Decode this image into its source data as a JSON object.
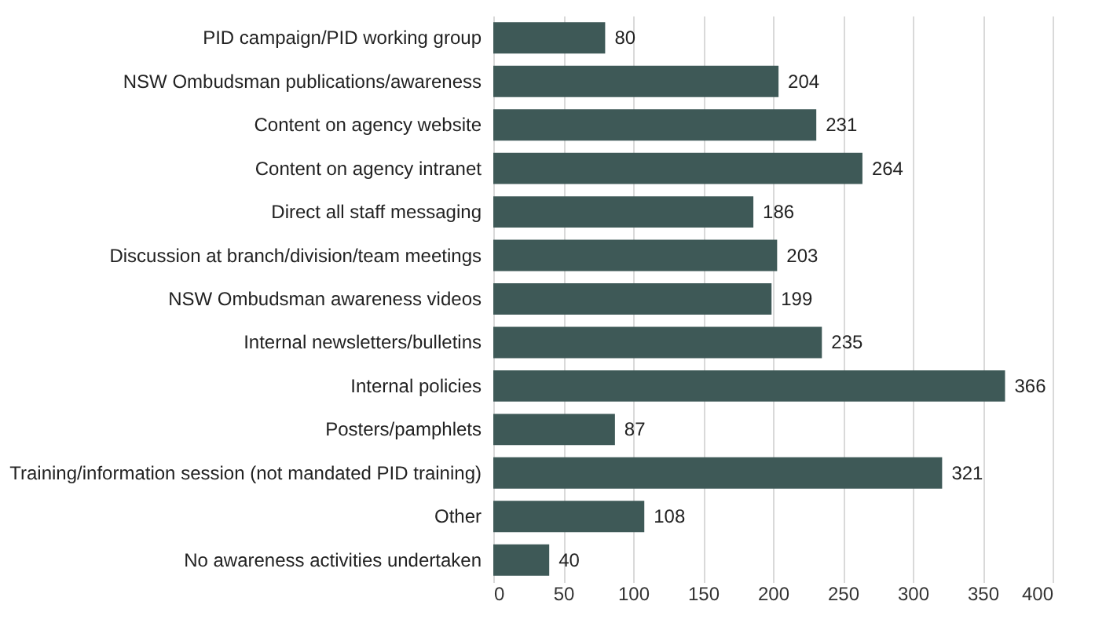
{
  "chart_data": {
    "type": "bar",
    "orientation": "horizontal",
    "categories": [
      "PID campaign/PID working group",
      "NSW Ombudsman publications/awareness",
      "Content on agency website",
      "Content on agency intranet",
      "Direct all staff messaging",
      "Discussion at branch/division/team meetings",
      "NSW Ombudsman awareness videos",
      "Internal newsletters/bulletins",
      "Internal policies",
      "Posters/pamphlets",
      "Training/information session (not mandated PID training)",
      "Other",
      "No awareness activities undertaken"
    ],
    "values": [
      80,
      204,
      231,
      264,
      186,
      203,
      199,
      235,
      366,
      87,
      321,
      108,
      40
    ],
    "color": "#3e5957",
    "xlim": [
      0,
      400
    ],
    "xticks": [
      0,
      50,
      100,
      150,
      200,
      250,
      300,
      350,
      400
    ],
    "grid": "x",
    "data_labels": true
  }
}
